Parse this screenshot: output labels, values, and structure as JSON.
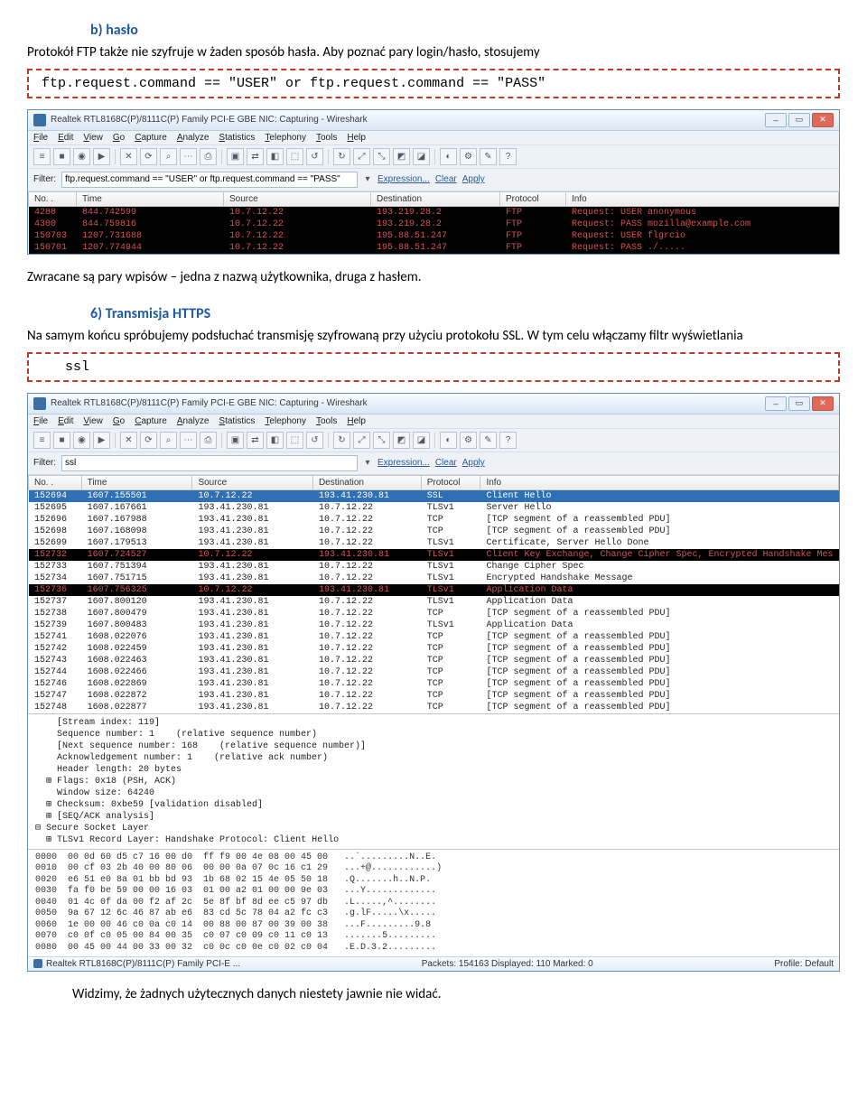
{
  "h1": "b) hasło",
  "p1a": "Protokół FTP także nie szyfruje w żaden sposób hasła. Aby poznać pary login/hasło, stosujemy",
  "code1": "ftp.request.command == \"USER\" or ftp.request.command == \"PASS\"",
  "ws1": {
    "title": "Realtek RTL8168C(P)/8111C(P) Family PCI-E GBE NIC: Capturing - Wireshark",
    "menu": [
      "File",
      "Edit",
      "View",
      "Go",
      "Capture",
      "Analyze",
      "Statistics",
      "Telephony",
      "Tools",
      "Help"
    ],
    "filterLabel": "Filter:",
    "filterValue": "ftp.request.command == \"USER\" or ftp.request.command == \"PASS\"",
    "expr": "Expression...",
    "clear": "Clear",
    "apply": "Apply",
    "cols": [
      "No. .",
      "Time",
      "Source",
      "Destination",
      "Protocol",
      "Info"
    ],
    "rows": [
      {
        "cls": "row-black",
        "c": [
          "4288",
          "844.742599",
          "10.7.12.22",
          "193.219.28.2",
          "FTP",
          "Request: USER anonymous"
        ]
      },
      {
        "cls": "row-black",
        "c": [
          "4300",
          "844.759816",
          "10.7.12.22",
          "193.219.28.2",
          "FTP",
          "Request: PASS mozilla@example.com"
        ]
      },
      {
        "cls": "row-black",
        "c": [
          "150703",
          "1207.731688",
          "10.7.12.22",
          "195.88.51.247",
          "FTP",
          "Request: USER flgrcio"
        ]
      },
      {
        "cls": "row-black",
        "c": [
          "150701",
          "1207.774944",
          "10.7.12.22",
          "195.88.51.247",
          "FTP",
          "Request: PASS ./....."
        ]
      }
    ]
  },
  "p2": "Zwracane są pary wpisów – jedna z nazwą użytkownika, druga z hasłem.",
  "h2": "6) Transmisja HTTPS",
  "p3": "Na samym końcu spróbujemy podsłuchać transmisję szyfrowaną przy użyciu protokołu SSL. W tym celu włączamy filtr wyświetlania",
  "code2": "ssl",
  "ws2": {
    "title": "Realtek RTL8168C(P)/8111C(P) Family PCI-E GBE NIC: Capturing - Wireshark",
    "menu": [
      "File",
      "Edit",
      "View",
      "Go",
      "Capture",
      "Analyze",
      "Statistics",
      "Telephony",
      "Tools",
      "Help"
    ],
    "filterLabel": "Filter:",
    "filterValue": "ssl",
    "expr": "Expression...",
    "clear": "Clear",
    "apply": "Apply",
    "cols": [
      "No. .",
      "Time",
      "Source",
      "Destination",
      "Protocol",
      "Info"
    ],
    "rows": [
      {
        "cls": "row-sel",
        "c": [
          "152694",
          "1607.155501",
          "10.7.12.22",
          "193.41.230.81",
          "SSL",
          "Client Hello"
        ]
      },
      {
        "cls": "row-plain",
        "c": [
          "152695",
          "1607.167661",
          "193.41.230.81",
          "10.7.12.22",
          "TLSv1",
          "Server Hello"
        ]
      },
      {
        "cls": "row-plain",
        "c": [
          "152696",
          "1607.167988",
          "193.41.230.81",
          "10.7.12.22",
          "TCP",
          "[TCP segment of a reassembled PDU]"
        ]
      },
      {
        "cls": "row-plain",
        "c": [
          "152698",
          "1607.168098",
          "193.41.230.81",
          "10.7.12.22",
          "TCP",
          "[TCP segment of a reassembled PDU]"
        ]
      },
      {
        "cls": "row-plain",
        "c": [
          "152699",
          "1607.179513",
          "193.41.230.81",
          "10.7.12.22",
          "TLSv1",
          "Certificate, Server Hello Done"
        ]
      },
      {
        "cls": "row-black",
        "c": [
          "152732",
          "1607.724527",
          "10.7.12.22",
          "193.41.230.81",
          "TLSv1",
          "Client Key Exchange, Change Cipher Spec, Encrypted Handshake Mes"
        ]
      },
      {
        "cls": "row-plain",
        "c": [
          "152733",
          "1607.751394",
          "193.41.230.81",
          "10.7.12.22",
          "TLSv1",
          "Change Cipher Spec"
        ]
      },
      {
        "cls": "row-plain",
        "c": [
          "152734",
          "1607.751715",
          "193.41.230.81",
          "10.7.12.22",
          "TLSv1",
          "Encrypted Handshake Message"
        ]
      },
      {
        "cls": "row-black",
        "c": [
          "152736",
          "1607.756325",
          "10.7.12.22",
          "193.41.230.81",
          "TLSv1",
          "Application Data"
        ]
      },
      {
        "cls": "row-plain",
        "c": [
          "152737",
          "1607.800120",
          "193.41.230.81",
          "10.7.12.22",
          "TLSv1",
          "Application Data"
        ]
      },
      {
        "cls": "row-plain",
        "c": [
          "152738",
          "1607.800479",
          "193.41.230.81",
          "10.7.12.22",
          "TCP",
          "[TCP segment of a reassembled PDU]"
        ]
      },
      {
        "cls": "row-plain",
        "c": [
          "152739",
          "1607.800483",
          "193.41.230.81",
          "10.7.12.22",
          "TLSv1",
          "Application Data"
        ]
      },
      {
        "cls": "row-plain",
        "c": [
          "152741",
          "1608.022076",
          "193.41.230.81",
          "10.7.12.22",
          "TCP",
          "[TCP segment of a reassembled PDU]"
        ]
      },
      {
        "cls": "row-plain",
        "c": [
          "152742",
          "1608.022459",
          "193.41.230.81",
          "10.7.12.22",
          "TCP",
          "[TCP segment of a reassembled PDU]"
        ]
      },
      {
        "cls": "row-plain",
        "c": [
          "152743",
          "1608.022463",
          "193.41.230.81",
          "10.7.12.22",
          "TCP",
          "[TCP segment of a reassembled PDU]"
        ]
      },
      {
        "cls": "row-plain",
        "c": [
          "152744",
          "1608.022466",
          "193.41.230.81",
          "10.7.12.22",
          "TCP",
          "[TCP segment of a reassembled PDU]"
        ]
      },
      {
        "cls": "row-plain",
        "c": [
          "152746",
          "1608.022869",
          "193.41.230.81",
          "10.7.12.22",
          "TCP",
          "[TCP segment of a reassembled PDU]"
        ]
      },
      {
        "cls": "row-plain",
        "c": [
          "152747",
          "1608.022872",
          "193.41.230.81",
          "10.7.12.22",
          "TCP",
          "[TCP segment of a reassembled PDU]"
        ]
      },
      {
        "cls": "row-plain",
        "c": [
          "152748",
          "1608.022877",
          "193.41.230.81",
          "10.7.12.22",
          "TCP",
          "[TCP segment of a reassembled PDU]"
        ]
      }
    ],
    "detail": "    [Stream index: 119]\n    Sequence number: 1    (relative sequence number)\n    [Next sequence number: 168    (relative sequence number)]\n    Acknowledgement number: 1    (relative ack number)\n    Header length: 20 bytes\n  ⊞ Flags: 0x18 (PSH, ACK)\n    Window size: 64240\n  ⊞ Checksum: 0xbe59 [validation disabled]\n  ⊞ [SEQ/ACK analysis]\n⊟ Secure Socket Layer\n  ⊞ TLSv1 Record Layer: Handshake Protocol: Client Hello",
    "hex": "0000  00 0d 60 d5 c7 16 00 d0  ff f9 00 4e 08 00 45 00   ..`.........N..E.\n0010  00 cf 03 2b 40 00 80 06  00 00 0a 07 0c 16 c1 29   ...+@............)\n0020  e6 51 e0 8a 01 bb bd 93  1b 68 02 15 4e 05 50 18   .Q.......h..N.P.\n0030  fa f0 be 59 00 00 16 03  01 00 a2 01 00 00 9e 03   ...Y.............\n0040  01 4c 0f da 00 f2 af 2c  5e 8f bf 8d ee c5 97 db   .L.....,^........\n0050  9a 67 12 6c 46 87 ab e6  83 cd 5c 78 04 a2 fc c3   .g.lF.....\\x.....\n0060  1e 00 00 46 c0 0a c0 14  00 88 00 87 00 39 00 38   ...F.........9.8\n0070  c0 0f c0 05 00 84 00 35  c0 07 c0 09 c0 11 c0 13   .......5.........\n0080  00 45 00 44 00 33 00 32  c0 0c c0 0e c0 02 c0 04   .E.D.3.2.........",
    "statusLeft": "Realtek RTL8168C(P)/8111C(P) Family PCI-E ...",
    "statusMid": "Packets: 154163 Displayed: 110 Marked: 0",
    "statusRight": "Profile: Default"
  },
  "p4": "Widzimy, że żadnych użytecznych danych niestety jawnie nie widać.",
  "toolbar_glyphs": [
    "≡",
    "■",
    "◉",
    "▶",
    "✕",
    "⟳",
    "⌕",
    "⋯",
    "⎙",
    "▣",
    "⇄",
    "◧",
    "⬚",
    "↺",
    "↻",
    "⤢",
    "⤡",
    "◩",
    "◪",
    "◐",
    "⚙",
    "✎",
    "?"
  ]
}
